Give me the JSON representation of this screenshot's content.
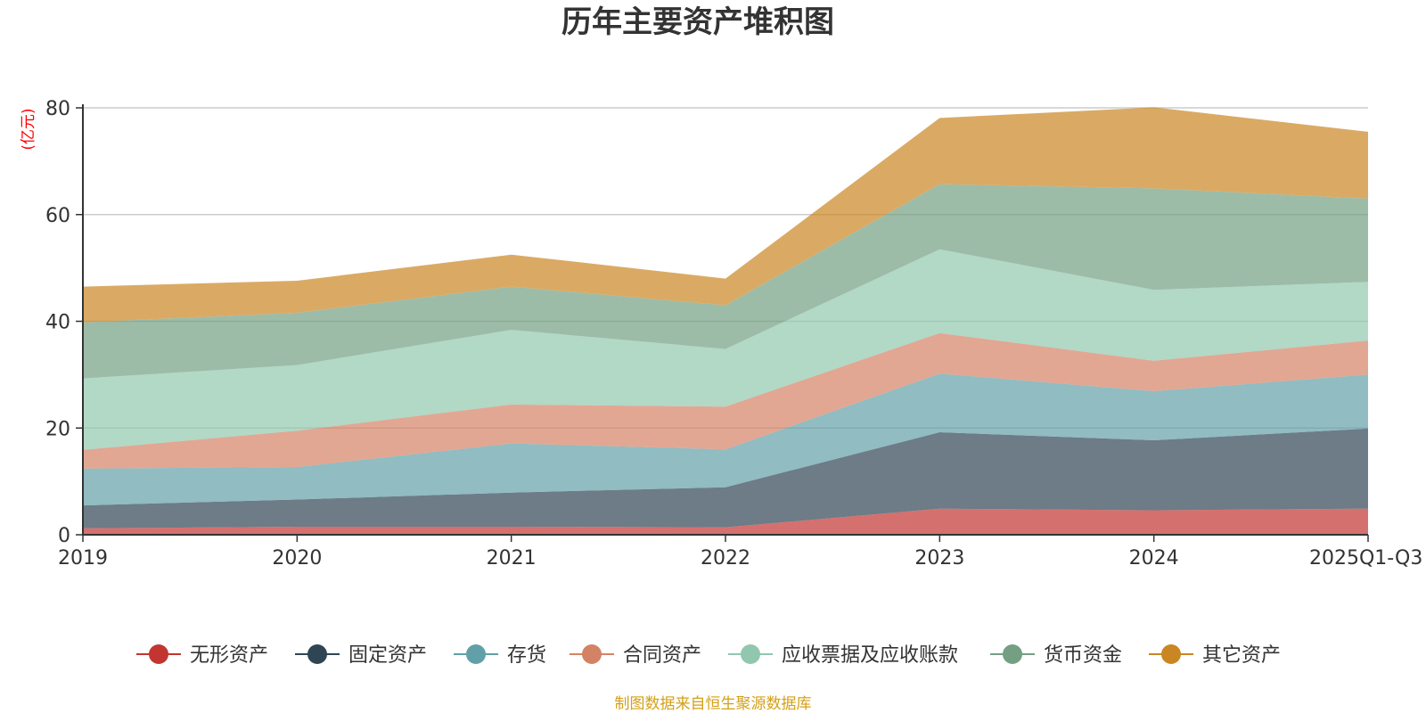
{
  "chart_data": {
    "type": "area",
    "stacked": true,
    "title": "历年主要资产堆积图",
    "ylabel": "(亿元)",
    "xlabel": "",
    "categories": [
      "2019",
      "2020",
      "2021",
      "2022",
      "2023",
      "2024",
      "2025Q1-Q3"
    ],
    "ylim": [
      0,
      80
    ],
    "yticks": [
      0,
      20,
      40,
      60,
      80
    ],
    "grid": true,
    "legend_position": "bottom",
    "series": [
      {
        "name": "无形资产",
        "color": "#c23531",
        "values": [
          1.2,
          1.5,
          1.5,
          1.4,
          4.9,
          4.6,
          4.9
        ]
      },
      {
        "name": "固定资产",
        "color": "#2f4554",
        "values": [
          4.3,
          5.1,
          6.4,
          7.5,
          14.3,
          13.1,
          15.0
        ]
      },
      {
        "name": "存货",
        "color": "#61a0a8",
        "values": [
          6.9,
          6.1,
          9.2,
          7.1,
          11.0,
          9.2,
          10.1
        ]
      },
      {
        "name": "合同资产",
        "color": "#d48265",
        "values": [
          3.5,
          6.8,
          7.3,
          8.0,
          7.6,
          5.7,
          6.4
        ]
      },
      {
        "name": "应收票据及应收账款",
        "color": "#91c7ae",
        "values": [
          13.4,
          12.3,
          14.0,
          10.8,
          15.7,
          13.3,
          11.0
        ]
      },
      {
        "name": "货币资金",
        "color": "#749f83",
        "values": [
          10.5,
          9.8,
          8.1,
          8.2,
          12.2,
          19.0,
          15.6
        ]
      },
      {
        "name": "其它资产",
        "color": "#ca8622",
        "values": [
          6.7,
          6.0,
          6.0,
          5.0,
          12.4,
          15.2,
          12.5
        ]
      }
    ],
    "footnote": "制图数据来自恒生聚源数据库"
  }
}
